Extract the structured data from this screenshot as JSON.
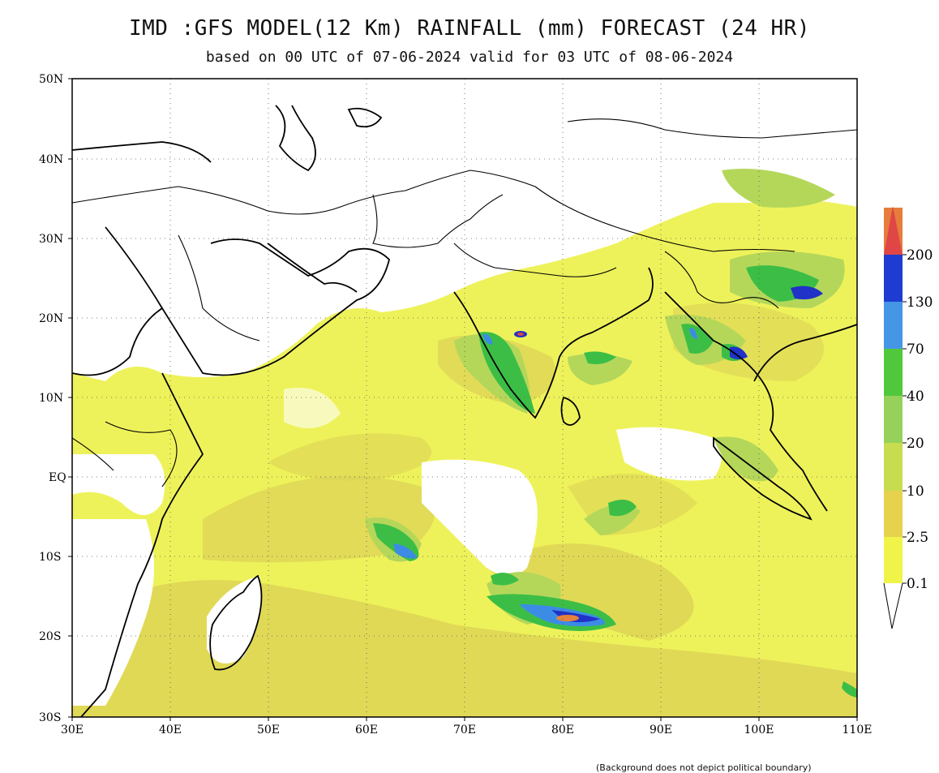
{
  "title": "IMD :GFS MODEL(12 Km) RAINFALL (mm) FORECAST (24 HR)",
  "subtitle": "based on 00 UTC of 07-06-2024 valid for 03 UTC of 08-06-2024",
  "footnote": "(Background does not depict political boundary)",
  "axes": {
    "lat_labels": [
      "50N",
      "40N",
      "30N",
      "20N",
      "10N",
      "EQ",
      "10S",
      "20S",
      "30S"
    ],
    "lon_labels": [
      "30E",
      "40E",
      "50E",
      "60E",
      "70E",
      "80E",
      "90E",
      "100E",
      "110E"
    ]
  },
  "legend": {
    "labels": [
      "0.1",
      "2.5",
      "10",
      "20",
      "40",
      "70",
      "130",
      "200"
    ],
    "colors": [
      "#f0f44a",
      "#e6d24c",
      "#c8dc50",
      "#96d25a",
      "#50c83c",
      "#4696e6",
      "#1e3cd2",
      "#e67d3c",
      "#e04646"
    ]
  },
  "palette": {
    "ocean_base": "#eef25a",
    "land": "#ffffff",
    "light_rain": "#dcd255",
    "mod_rain": "#b4d75a",
    "heavy_rain": "#3cbe46",
    "very_heavy": "#3c8ce6",
    "extreme": "#2032c8",
    "peak": "#e6823c"
  }
}
